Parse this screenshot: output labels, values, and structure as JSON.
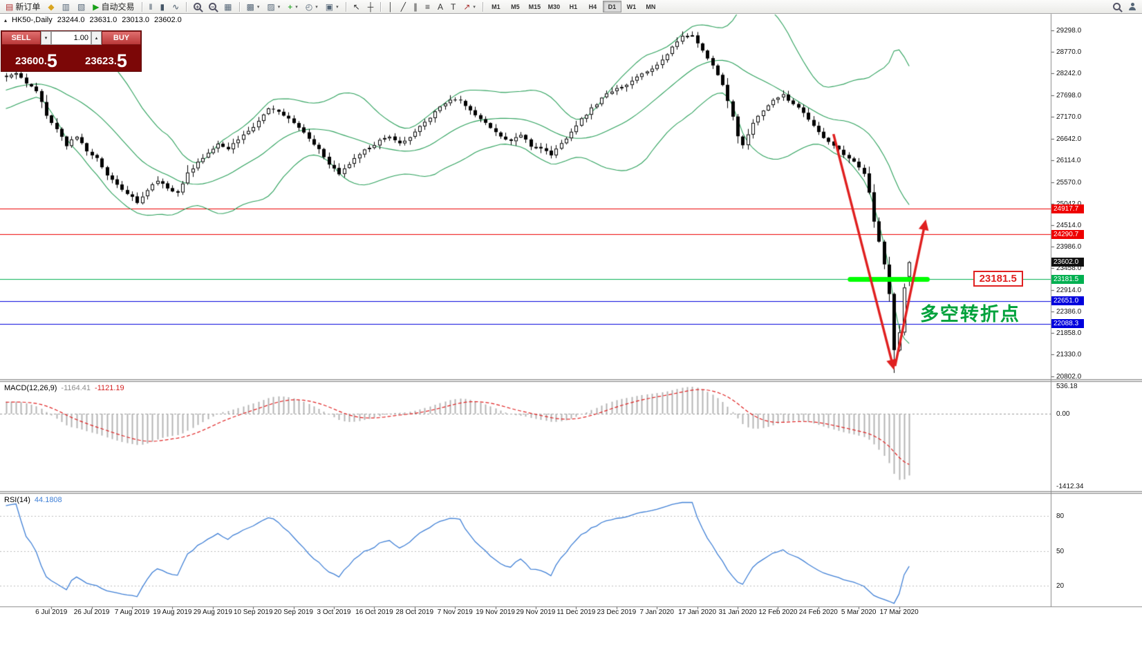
{
  "toolbar": {
    "items": [
      {
        "t": "btn",
        "name": "new-order-button",
        "glyph": "▤",
        "glyph_color": "#b03030",
        "label": "新订单"
      },
      {
        "t": "btn",
        "name": "metaeditor-button",
        "glyph": "◆",
        "glyph_color": "#d9a520"
      },
      {
        "t": "btn",
        "name": "market-watch-button",
        "glyph": "▥",
        "glyph_color": "#556677"
      },
      {
        "t": "btn",
        "name": "navigator-button",
        "glyph": "▧",
        "glyph_color": "#556677"
      },
      {
        "t": "btn",
        "name": "autotrading-button",
        "glyph": "▶",
        "glyph_color": "#18a018",
        "label": "自动交易"
      },
      {
        "t": "sep"
      },
      {
        "t": "btn",
        "name": "bar-chart-button",
        "glyph": "‖",
        "glyph_color": "#445566"
      },
      {
        "t": "btn",
        "name": "candlestick-chart-button",
        "glyph": "▮",
        "glyph_color": "#445566"
      },
      {
        "t": "btn",
        "name": "line-chart-button",
        "glyph": "∿",
        "glyph_color": "#445566"
      },
      {
        "t": "sep"
      },
      {
        "t": "mag",
        "name": "zoom-in-button",
        "sign": "+"
      },
      {
        "t": "mag",
        "name": "zoom-out-button",
        "sign": "−"
      },
      {
        "t": "btn",
        "name": "tile-windows-button",
        "glyph": "▦",
        "glyph_color": "#556677"
      },
      {
        "t": "sep"
      },
      {
        "t": "btn",
        "name": "new-chart-button",
        "glyph": "▩",
        "glyph_color": "#556677",
        "caret": true
      },
      {
        "t": "btn",
        "name": "profiles-button",
        "glyph": "▨",
        "glyph_color": "#556677",
        "caret": true
      },
      {
        "t": "btn",
        "name": "add-indicator-button",
        "glyph": "+",
        "glyph_color": "#009900",
        "caret": true
      },
      {
        "t": "btn",
        "name": "periods-button",
        "glyph": "◴",
        "glyph_color": "#556677",
        "caret": true
      },
      {
        "t": "btn",
        "name": "template-button",
        "glyph": "▣",
        "glyph_color": "#556677",
        "caret": true
      },
      {
        "t": "sep"
      },
      {
        "t": "btn",
        "name": "cursor-button",
        "glyph": "↖",
        "glyph_color": "#333333"
      },
      {
        "t": "btn",
        "name": "crosshair-button",
        "glyph": "┼",
        "glyph_color": "#333333"
      },
      {
        "t": "sep"
      },
      {
        "t": "btn",
        "name": "vertical-line-button",
        "glyph": "│",
        "glyph_color": "#333333"
      },
      {
        "t": "btn",
        "name": "trendline-button",
        "glyph": "╱",
        "glyph_color": "#333333"
      },
      {
        "t": "btn",
        "name": "channel-button",
        "glyph": "∥",
        "glyph_color": "#333333"
      },
      {
        "t": "btn",
        "name": "fibonacci-button",
        "glyph": "≡",
        "glyph_color": "#333333"
      },
      {
        "t": "btn",
        "name": "text-button",
        "glyph": "A",
        "glyph_color": "#333333"
      },
      {
        "t": "btn",
        "name": "label-button",
        "glyph": "T",
        "glyph_color": "#333333"
      },
      {
        "t": "btn",
        "name": "arrows-button",
        "glyph": "↗",
        "glyph_color": "#aa3333",
        "caret": true
      },
      {
        "t": "sep"
      },
      {
        "t": "tfgroup"
      },
      {
        "t": "spacer"
      },
      {
        "t": "mag",
        "name": "search-button",
        "sign": ""
      },
      {
        "t": "person",
        "name": "community-button"
      }
    ],
    "timeframes": {
      "items": [
        "M1",
        "M5",
        "M15",
        "M30",
        "H1",
        "H4",
        "D1",
        "W1",
        "MN"
      ],
      "active": "D1"
    }
  },
  "chart_header": {
    "collapse_icon": "▴",
    "symbol_period": "HK50-,Daily",
    "open": "23244.0",
    "high": "23631.0",
    "low": "23013.0",
    "close": "23602.0"
  },
  "trade_panel": {
    "sell_label": "SELL",
    "buy_label": "BUY",
    "volume": "1.00",
    "vol_down_glyph": "▾",
    "vol_up_glyph": "▴",
    "sell_price_main": "23600.",
    "sell_price_pip": "5",
    "buy_price_main": "23623.",
    "buy_price_pip": "5"
  },
  "chart_data": {
    "type": "candlestick",
    "symbol": "HK50-",
    "period": "Daily",
    "last_bar": {
      "open": 23244.0,
      "high": 23631.0,
      "low": 23013.0,
      "close": 23602.0
    },
    "y_ticks": [
      "29298.0",
      "28770.0",
      "28242.0",
      "27698.0",
      "27170.0",
      "26642.0",
      "26114.0",
      "25570.0",
      "25042.0",
      "24514.0",
      "23986.0",
      "23458.0",
      "22914.0",
      "22386.0",
      "21858.0",
      "21330.0",
      "20802.0"
    ],
    "x_labels": [
      "6 Jul 2019",
      "26 Jul 2019",
      "7 Aug 2019",
      "19 Aug 2019",
      "29 Aug 2019",
      "10 Sep 2019",
      "20 Sep 2019",
      "3 Oct 2019",
      "16 Oct 2019",
      "28 Oct 2019",
      "7 Nov 2019",
      "19 Nov 2019",
      "29 Nov 2019",
      "11 Dec 2019",
      "23 Dec 2019",
      "7 Jan 2020",
      "17 Jan 2020",
      "31 Jan 2020",
      "12 Feb 2020",
      "24 Feb 2020",
      "5 Mar 2020",
      "17 Mar 2020"
    ],
    "levels": [
      {
        "price": 24917.7,
        "label": "24917.7",
        "color": "#ee0000"
      },
      {
        "price": 24290.7,
        "label": "24290.7",
        "color": "#ee0000"
      },
      {
        "price": 23181.5,
        "label": "23181.5",
        "color": "#00b050"
      },
      {
        "price": 22651.0,
        "label": "22651.0",
        "color": "#0000dd"
      },
      {
        "price": 22088.3,
        "label": "22088.3",
        "color": "#0000dd"
      }
    ],
    "current_price": {
      "value": 23602.0,
      "label": "23602.0",
      "label_bg": "#101010"
    },
    "candles": {
      "count": 180,
      "crash_low_index": 176,
      "crash_low": 20880,
      "waypoints": [
        [
          0,
          28150
        ],
        [
          2,
          28230
        ],
        [
          4,
          27980
        ],
        [
          6,
          27820
        ],
        [
          8,
          27230
        ],
        [
          10,
          26860
        ],
        [
          12,
          26480
        ],
        [
          14,
          26700
        ],
        [
          16,
          26350
        ],
        [
          18,
          26150
        ],
        [
          20,
          25720
        ],
        [
          22,
          25500
        ],
        [
          24,
          25280
        ],
        [
          26,
          25080
        ],
        [
          28,
          25380
        ],
        [
          30,
          25620
        ],
        [
          32,
          25420
        ],
        [
          34,
          25300
        ],
        [
          36,
          25780
        ],
        [
          38,
          26080
        ],
        [
          40,
          26280
        ],
        [
          42,
          26520
        ],
        [
          44,
          26400
        ],
        [
          46,
          26620
        ],
        [
          48,
          26800
        ],
        [
          50,
          27050
        ],
        [
          52,
          27380
        ],
        [
          54,
          27290
        ],
        [
          56,
          27120
        ],
        [
          58,
          26920
        ],
        [
          60,
          26650
        ],
        [
          62,
          26380
        ],
        [
          64,
          25980
        ],
        [
          66,
          25780
        ],
        [
          68,
          26030
        ],
        [
          70,
          26280
        ],
        [
          72,
          26420
        ],
        [
          74,
          26580
        ],
        [
          76,
          26680
        ],
        [
          78,
          26520
        ],
        [
          80,
          26680
        ],
        [
          82,
          26920
        ],
        [
          84,
          27160
        ],
        [
          86,
          27420
        ],
        [
          88,
          27620
        ],
        [
          90,
          27560
        ],
        [
          92,
          27360
        ],
        [
          94,
          27120
        ],
        [
          96,
          26880
        ],
        [
          98,
          26680
        ],
        [
          100,
          26580
        ],
        [
          102,
          26720
        ],
        [
          104,
          26470
        ],
        [
          106,
          26380
        ],
        [
          108,
          26230
        ],
        [
          110,
          26520
        ],
        [
          112,
          26780
        ],
        [
          114,
          27120
        ],
        [
          116,
          27380
        ],
        [
          118,
          27620
        ],
        [
          120,
          27820
        ],
        [
          122,
          27920
        ],
        [
          124,
          28060
        ],
        [
          126,
          28220
        ],
        [
          128,
          28380
        ],
        [
          130,
          28560
        ],
        [
          132,
          28900
        ],
        [
          134,
          29180
        ],
        [
          136,
          29200
        ],
        [
          138,
          28800
        ],
        [
          140,
          28450
        ],
        [
          142,
          27950
        ],
        [
          144,
          27150
        ],
        [
          145,
          26700
        ],
        [
          146,
          26450
        ],
        [
          148,
          27050
        ],
        [
          150,
          27350
        ],
        [
          152,
          27600
        ],
        [
          154,
          27700
        ],
        [
          156,
          27500
        ],
        [
          158,
          27250
        ],
        [
          160,
          26950
        ],
        [
          162,
          26650
        ],
        [
          164,
          26450
        ],
        [
          166,
          26250
        ],
        [
          168,
          26100
        ],
        [
          170,
          25800
        ],
        [
          171,
          25300
        ],
        [
          172,
          24600
        ],
        [
          173,
          24100
        ],
        [
          174,
          23550
        ],
        [
          175,
          22800
        ],
        [
          176,
          21450
        ],
        [
          177,
          21900
        ],
        [
          178,
          22950
        ],
        [
          179,
          23602
        ]
      ]
    },
    "bollinger": {
      "period": 20,
      "deviation": 2,
      "color": "#2aa05a"
    },
    "macd": {
      "title": "MACD(12,26,9)",
      "value_main": "-1164.41",
      "value_main_color": "#8a8a8a",
      "value_signal": "-1121.19",
      "value_signal_color": "#d42020",
      "scale": [
        "536.18",
        "0.00",
        "-1412.34"
      ],
      "histogram_color": "#b4b4b4",
      "signal_color": "#e02020"
    },
    "rsi": {
      "title": "RSI(14)",
      "value": "44.1808",
      "scale": [
        "80",
        "50",
        "20"
      ],
      "line_color": "#3e7fd6"
    },
    "annotations": {
      "price_callout": {
        "text": "23181.5",
        "i": 192,
        "price": 23181.5,
        "color": "#e02020"
      },
      "cn_note": {
        "text": "多空转折点",
        "i": 181.5,
        "price": 22430,
        "color": "#00a23c"
      },
      "highlight": {
        "price": 23181.5,
        "i_from": 167.3,
        "i_to": 182.6,
        "color": "#00ff00"
      },
      "arrows": [
        {
          "from_i": 164,
          "from_price": 26750,
          "to_i": 176,
          "to_price": 20950,
          "color": "#e02020"
        },
        {
          "from_i": 176.2,
          "from_price": 21050,
          "to_i": 182.3,
          "to_price": 24650,
          "color": "#e02020"
        }
      ]
    }
  }
}
